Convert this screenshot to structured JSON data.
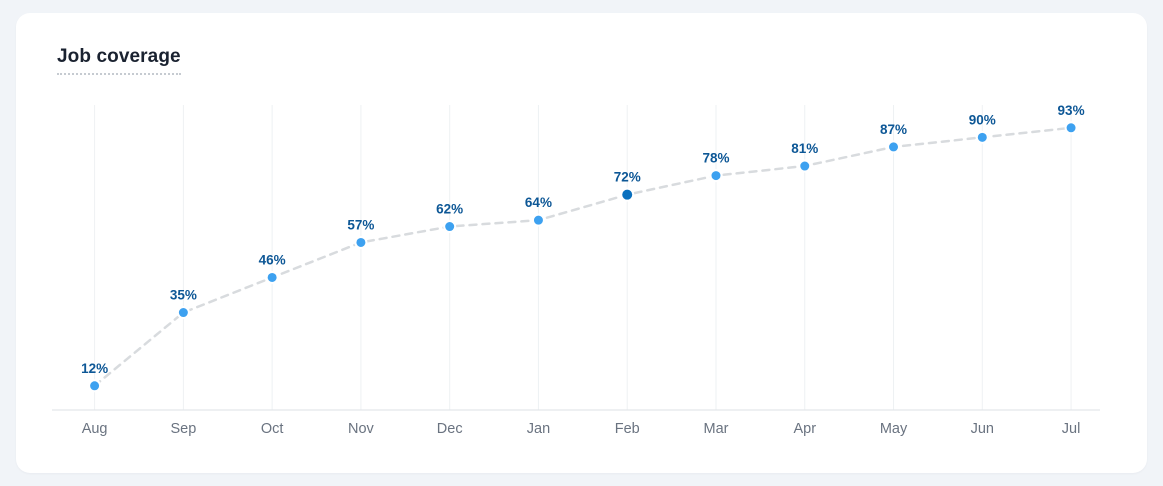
{
  "page": {
    "background": "#f1f4f8",
    "card_background": "#ffffff"
  },
  "header": {
    "title": "Job coverage"
  },
  "chart_data": {
    "type": "line",
    "title": "Job coverage",
    "categories": [
      "Aug",
      "Sep",
      "Oct",
      "Nov",
      "Dec",
      "Jan",
      "Feb",
      "Mar",
      "Apr",
      "May",
      "Jun",
      "Jul"
    ],
    "values": [
      12,
      35,
      46,
      57,
      62,
      64,
      72,
      78,
      81,
      87,
      90,
      93
    ],
    "labels": [
      "12%",
      "35%",
      "46%",
      "57%",
      "62%",
      "64%",
      "72%",
      "78%",
      "81%",
      "87%",
      "90%",
      "93%"
    ],
    "unit": "%",
    "xlabel": "",
    "ylabel": "",
    "ylim": [
      0,
      100
    ],
    "grid": "vertical",
    "line_style": "dashed",
    "legend": "none",
    "highlight_index": 6,
    "colors": {
      "point": "#3da1f0",
      "point_highlight": "#0a70be",
      "point_border": "#ffffff",
      "value_label": "#0d5796",
      "trend_line": "#d8dbde",
      "gridline": "#eef1f3",
      "axis_line": "#e3e6e9",
      "tick_label": "#6a7380"
    }
  }
}
